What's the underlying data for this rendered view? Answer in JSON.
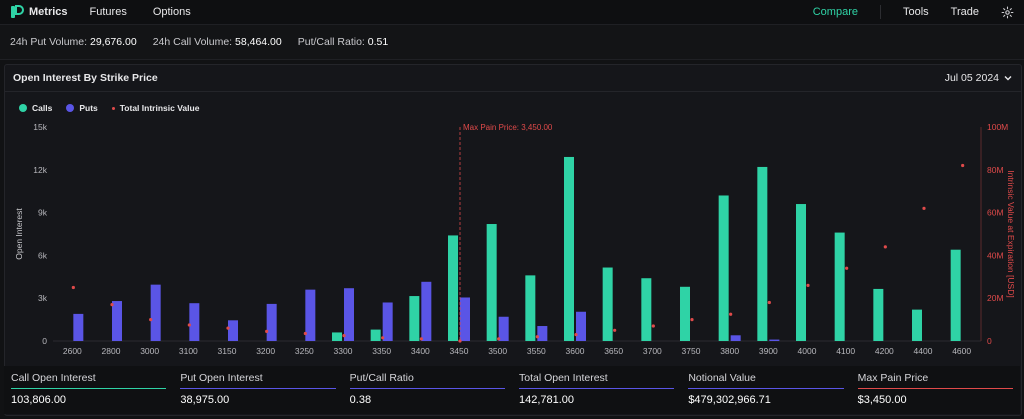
{
  "app": {
    "brand": "Metrics",
    "nav": [
      "Futures",
      "Options"
    ],
    "right_nav": {
      "compare": "Compare",
      "tools": "Tools",
      "trade": "Trade"
    }
  },
  "stats": [
    {
      "label": "24h Put Volume:",
      "value": "29,676.00"
    },
    {
      "label": "24h Call Volume:",
      "value": "58,464.00"
    },
    {
      "label": "Put/Call Ratio:",
      "value": "0.51"
    }
  ],
  "panel": {
    "title": "Open Interest By Strike Price",
    "date": "Jul 05 2024"
  },
  "legend": {
    "calls": "Calls",
    "puts": "Puts",
    "intrinsic": "Total Intrinsic Value"
  },
  "colors": {
    "calls": "#2fd3a6",
    "puts": "#5a55e6",
    "intrinsic": "#e04a4a"
  },
  "chart_data": {
    "type": "bar",
    "categories": [
      "2600",
      "2800",
      "3000",
      "3100",
      "3150",
      "3200",
      "3250",
      "3300",
      "3350",
      "3400",
      "3450",
      "3500",
      "3550",
      "3600",
      "3650",
      "3700",
      "3750",
      "3800",
      "3900",
      "4000",
      "4100",
      "4200",
      "4400",
      "4600"
    ],
    "series": [
      {
        "name": "Calls",
        "axis": "left",
        "values": [
          0,
          0,
          0,
          0,
          0,
          0,
          0,
          600,
          800,
          3150,
          7400,
          8200,
          4600,
          12900,
          5150,
          4400,
          3800,
          10200,
          12200,
          9600,
          7600,
          3650,
          2200,
          6400
        ]
      },
      {
        "name": "Puts",
        "axis": "left",
        "values": [
          1900,
          2800,
          3950,
          2650,
          1450,
          2600,
          3600,
          3700,
          2700,
          4150,
          3050,
          1700,
          1050,
          2050,
          0,
          0,
          0,
          400,
          100,
          0,
          0,
          0,
          0,
          0
        ]
      },
      {
        "name": "Total Intrinsic Value",
        "type": "scatter",
        "axis": "right",
        "values": [
          25000000,
          17000000,
          10000000,
          7500000,
          6000000,
          4500000,
          3500000,
          2500000,
          1500000,
          1000000,
          0,
          1000000,
          2000000,
          3000000,
          5000000,
          7000000,
          10000000,
          12500000,
          18000000,
          26000000,
          34000000,
          44000000,
          62000000,
          82000000
        ]
      }
    ],
    "ylabel": "Open Interest",
    "y2label": "Intrinsic Value at Expiration [USD]",
    "ylim": [
      0,
      15000
    ],
    "y2lim": [
      0,
      100000000
    ],
    "yticks": [
      "0",
      "3k",
      "6k",
      "9k",
      "12k",
      "15k"
    ],
    "y2ticks": [
      "0",
      "20M",
      "40M",
      "60M",
      "80M",
      "100M"
    ],
    "max_pain": {
      "strike": "3450",
      "label": "Max Pain Price: 3,450.00"
    },
    "grid": false
  },
  "summary": [
    {
      "label": "Call Open Interest",
      "value": "103,806.00",
      "color": "#2fd3a6"
    },
    {
      "label": "Put Open Interest",
      "value": "38,975.00",
      "color": "#5a55e6"
    },
    {
      "label": "Put/Call Ratio",
      "value": "0.38",
      "color": "#5a55e6"
    },
    {
      "label": "Total Open Interest",
      "value": "142,781.00",
      "color": "#5a55e6"
    },
    {
      "label": "Notional Value",
      "value": "$479,302,966.71",
      "color": "#5a55e6"
    },
    {
      "label": "Max Pain Price",
      "value": "$3,450.00",
      "color": "#e04a4a"
    }
  ]
}
